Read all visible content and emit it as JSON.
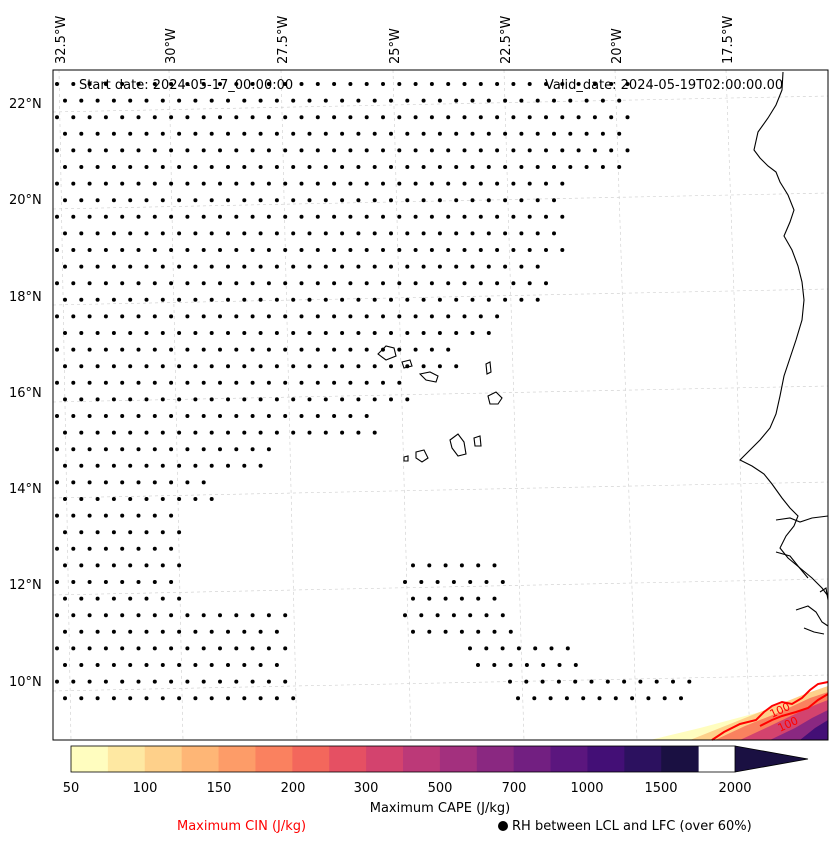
{
  "map": {
    "start_date": "Start date: 2024-05-17_00:00:00",
    "valid_date": "Valid_date: 2024-05-19T02:00:00.00",
    "lon_labels": [
      "32.5°W",
      "30°W",
      "27.5°W",
      "25°W",
      "22.5°W",
      "20°W",
      "17.5°W"
    ],
    "lat_labels": [
      "22°N",
      "20°N",
      "18°N",
      "16°N",
      "14°N",
      "12°N",
      "10°N"
    ],
    "cin_contour_labels": [
      "100",
      "100"
    ],
    "colors": {
      "coastline": "#000000",
      "cin_contour": "#ff0000",
      "gridline": "#cccccc",
      "dots": "#000000"
    }
  },
  "colorbar": {
    "label": "Maximum CAPE (J/kg)",
    "ticks": [
      "50",
      "100",
      "150",
      "200",
      "300",
      "500",
      "700",
      "1000",
      "1500",
      "2000"
    ],
    "colors": [
      "#fffdbf",
      "#fee8a2",
      "#fed08a",
      "#feb676",
      "#fd9c68",
      "#fa815f",
      "#f3675c",
      "#e55063",
      "#d3436e",
      "#bc3978",
      "#a3307e",
      "#8a2881",
      "#721f81",
      "#5b167e",
      "#430f76",
      "#2c115f",
      "#1a1042"
    ]
  },
  "legend": {
    "cin_label": "Maximum CIN (J/kg)",
    "rh_label": "RH between LCL and LFC (over 60%)"
  }
}
